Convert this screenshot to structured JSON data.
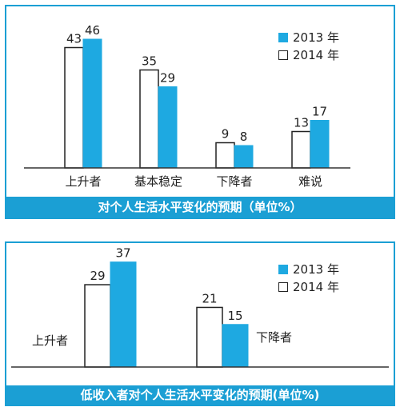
{
  "colors": {
    "accent": "#1b9fd4",
    "bar_2013": "#1ea9e1",
    "bar_2014": "#ffffff",
    "outline": "#222222"
  },
  "chart_data": [
    {
      "type": "bar",
      "title": "对个人生活水平变化的预期（单位%）",
      "categories": [
        "上升者",
        "基本稳定",
        "下降者",
        "难说"
      ],
      "series": [
        {
          "name": "2013 年",
          "values": [
            46,
            29,
            8,
            17
          ]
        },
        {
          "name": "2014 年",
          "values": [
            43,
            35,
            9,
            13
          ]
        }
      ],
      "ylim": [
        0,
        50
      ],
      "legend": "top-right",
      "grid": false
    },
    {
      "type": "bar",
      "title": "低收入者对个人生活水平变化的预期(单位%)",
      "categories": [
        "上升者",
        "下降者"
      ],
      "series": [
        {
          "name": "2013 年",
          "values": [
            37,
            15
          ]
        },
        {
          "name": "2014 年",
          "values": [
            29,
            21
          ]
        }
      ],
      "ylim": [
        0,
        45
      ],
      "legend": "top-right",
      "grid": false
    }
  ]
}
